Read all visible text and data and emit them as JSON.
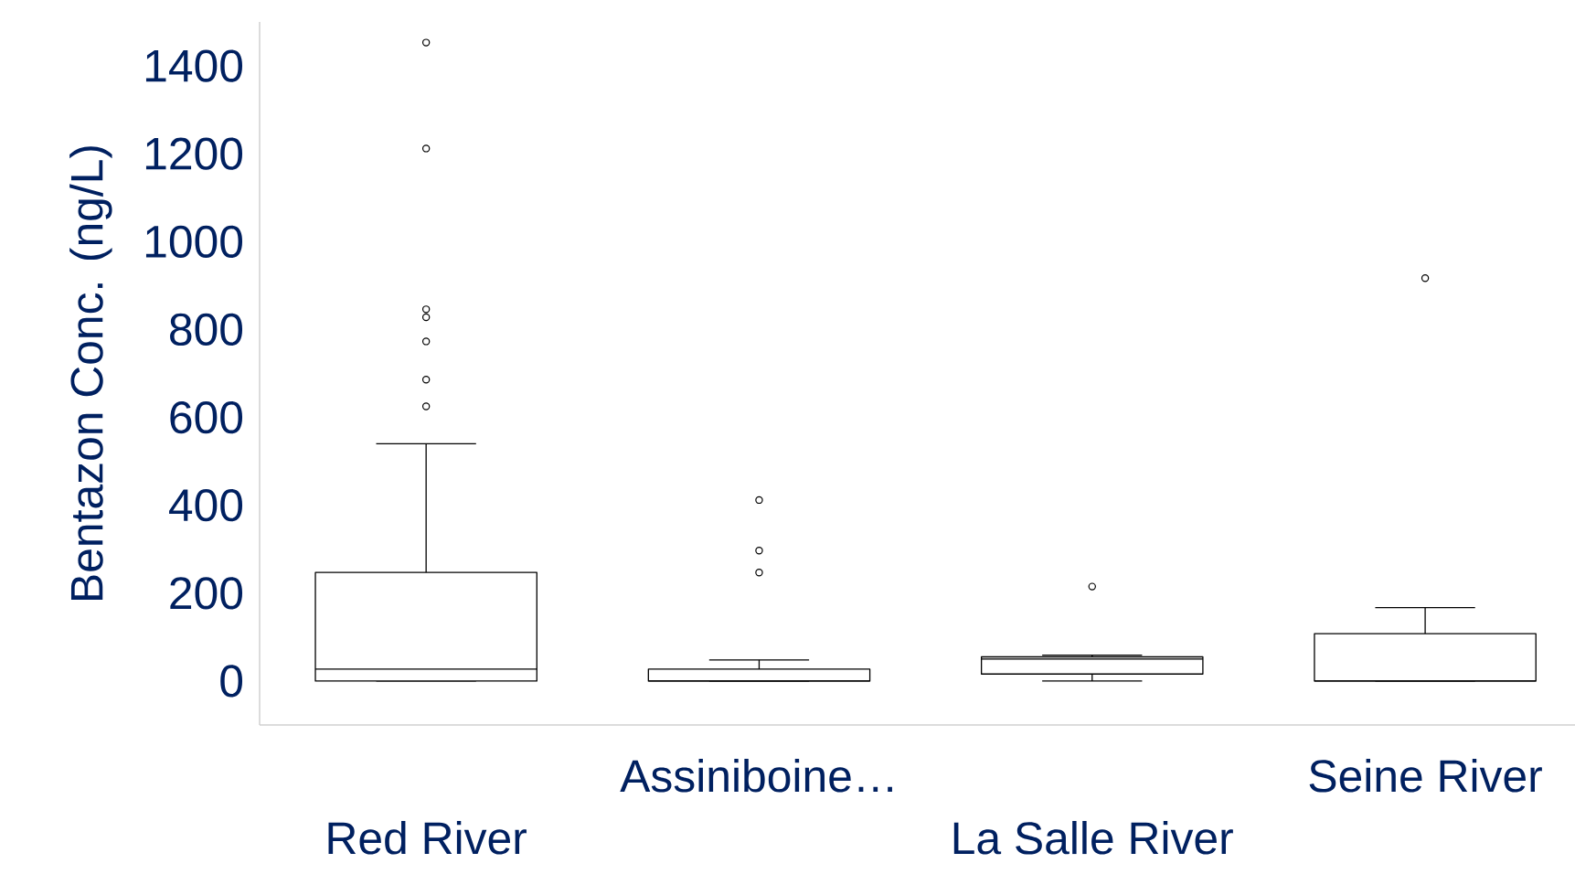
{
  "chart_data": {
    "type": "box",
    "ylabel": "Bentazon Conc. (ng/L)",
    "categories": [
      "Red River",
      "Assiniboine…",
      "La Salle River",
      "Seine River"
    ],
    "color": "#000000",
    "boxes": [
      {
        "low": 0,
        "q1": 0,
        "median": 27,
        "q3": 247,
        "high": 540,
        "outliers": [
          1453,
          1212,
          846,
          828,
          773,
          686,
          625
        ]
      },
      {
        "low": 0,
        "q1": 0,
        "median": 0,
        "q3": 27,
        "high": 48,
        "outliers": [
          412,
          297,
          247
        ]
      },
      {
        "low": 0,
        "q1": 16,
        "median": 50,
        "q3": 55,
        "high": 59,
        "outliers": [
          215
        ]
      },
      {
        "low": 0,
        "q1": 0,
        "median": 0,
        "q3": 108,
        "high": 167,
        "outliers": [
          917
        ]
      }
    ],
    "ylim": [
      -100,
      1500
    ],
    "yticks": [
      0,
      200,
      400,
      600,
      800,
      1000,
      1200,
      1400
    ],
    "grid": false
  }
}
